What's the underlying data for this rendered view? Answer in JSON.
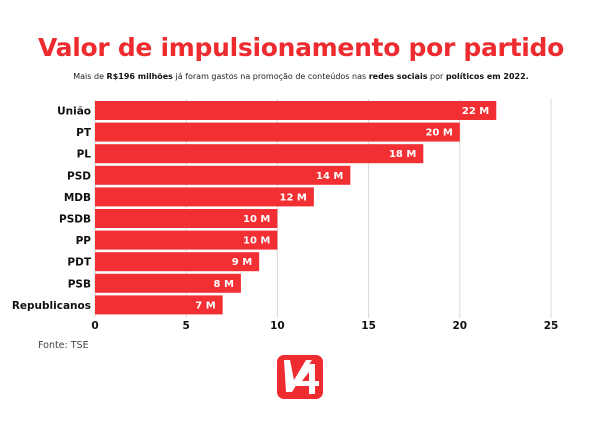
{
  "title": "Valor de impulsionamento por partido",
  "subtitle": {
    "parts": [
      {
        "text": "Mais de ",
        "bold": false
      },
      {
        "text": "R$196 milhões",
        "bold": true
      },
      {
        "text": " já foram gastos na promoção de conteúdos nas ",
        "bold": false
      },
      {
        "text": "redes sociais",
        "bold": true
      },
      {
        "text": " por ",
        "bold": false
      },
      {
        "text": "políticos em 2022.",
        "bold": true
      }
    ]
  },
  "source": "Fonte: TSE",
  "logo": {
    "icon": "v4-logo-icon",
    "color": "#ee2b2f"
  },
  "colors": {
    "bar": "#f22f33",
    "grid": "#d9d9d9",
    "title": "#ee2b2f"
  },
  "chart_data": {
    "type": "bar",
    "orientation": "horizontal",
    "title": "Valor de impulsionamento por partido",
    "xlabel": "",
    "ylabel": "",
    "categories": [
      "União",
      "PT",
      "PL",
      "PSD",
      "MDB",
      "PSDB",
      "PP",
      "PDT",
      "PSB",
      "Republicanos"
    ],
    "values": [
      22,
      20,
      18,
      14,
      12,
      10,
      10,
      9,
      8,
      7
    ],
    "value_labels": [
      "22 M",
      "20 M",
      "18 M",
      "14 M",
      "12 M",
      "10 M",
      "10 M",
      "9 M",
      "8 M",
      "7 M"
    ],
    "unit": "M",
    "xlim": [
      0,
      25
    ],
    "xticks": [
      0,
      5,
      10,
      15,
      20,
      25
    ],
    "xtick_labels": [
      "0",
      "5",
      "10",
      "15",
      "20",
      "25"
    ],
    "grid": "vertical",
    "legend": "none"
  }
}
